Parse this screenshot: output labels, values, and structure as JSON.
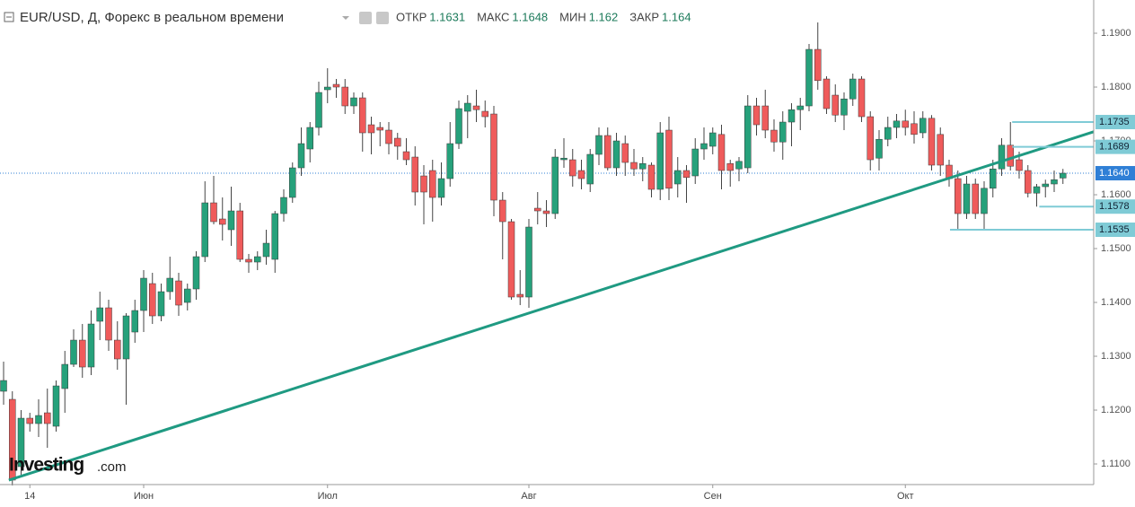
{
  "chart_data": {
    "type": "candlestick",
    "title": "EUR/USD, Д, Форекс в реальном времени",
    "header_labels": [
      "ОТКР",
      "МАКС",
      "МИН",
      "ЗАКР"
    ],
    "watermark": [
      "Investing",
      ".com"
    ],
    "up_color": "#26a17b",
    "down_color": "#ef5b5b",
    "wick_color": "#444444",
    "categories": [
      null,
      null,
      null,
      "14",
      null,
      null,
      null,
      null,
      null,
      null,
      null,
      null,
      null,
      null,
      null,
      null,
      "Июн",
      null,
      null,
      null,
      null,
      null,
      null,
      null,
      null,
      null,
      null,
      null,
      null,
      null,
      null,
      null,
      null,
      null,
      null,
      null,
      null,
      "Июл",
      null,
      null,
      null,
      null,
      null,
      null,
      null,
      null,
      null,
      null,
      null,
      null,
      null,
      null,
      null,
      null,
      null,
      null,
      null,
      null,
      null,
      null,
      "Авг",
      null,
      null,
      null,
      null,
      null,
      null,
      null,
      null,
      null,
      null,
      null,
      null,
      null,
      null,
      null,
      null,
      null,
      null,
      null,
      null,
      "Сен",
      null,
      null,
      null,
      null,
      null,
      null,
      null,
      null,
      null,
      null,
      null,
      null,
      null,
      null,
      null,
      null,
      null,
      null,
      null,
      null,
      null,
      "Окт",
      null,
      null,
      null,
      null,
      null,
      null,
      null,
      null,
      null,
      null,
      null,
      null,
      null,
      null,
      null,
      null,
      null,
      null
    ],
    "open": [
      1.1235,
      1.122,
      1.1095,
      1.1185,
      1.1175,
      1.1195,
      1.117,
      1.124,
      1.1285,
      1.133,
      1.128,
      1.1365,
      1.139,
      1.133,
      1.1295,
      1.1345,
      1.1385,
      1.1435,
      1.1375,
      1.142,
      1.144,
      1.14,
      1.1425,
      1.1485,
      1.1585,
      1.1555,
      1.1535,
      1.157,
      1.148,
      1.1475,
      1.1485,
      1.148,
      1.1565,
      1.1595,
      1.165,
      1.1685,
      1.1725,
      1.1795,
      1.1805,
      1.18,
      1.1765,
      1.178,
      1.173,
      1.1725,
      1.172,
      1.1705,
      1.168,
      1.167,
      1.1635,
      1.1645,
      1.1595,
      1.163,
      1.1695,
      1.1755,
      1.1765,
      1.1755,
      1.175,
      1.159,
      1.155,
      1.1415,
      1.141,
      1.1575,
      1.157,
      1.1565,
      1.1665,
      1.1665,
      1.1645,
      1.162,
      1.1675,
      1.171,
      1.165,
      1.1695,
      1.166,
      1.1648,
      1.1655,
      1.161,
      1.172,
      1.162,
      1.1645,
      1.1635,
      1.1685,
      1.169,
      1.1712,
      1.1658,
      1.1648,
      1.165,
      1.1765,
      1.1765,
      1.172,
      1.1698,
      1.1735,
      1.1758,
      1.1765,
      1.187,
      1.1815,
      1.1785,
      1.1748,
      1.1778,
      1.1815,
      1.1745,
      1.1668,
      1.1703,
      1.1725,
      1.1737,
      1.1732,
      1.1715,
      1.1742,
      1.1712,
      1.1655,
      1.163,
      1.1565,
      1.162,
      1.1565,
      1.1612,
      1.1648,
      1.1692,
      1.1665,
      1.1645,
      1.1603,
      1.1615,
      1.162,
      1.1631
    ],
    "high": [
      1.129,
      1.1235,
      1.12,
      1.1195,
      1.122,
      1.124,
      1.1255,
      1.131,
      1.135,
      1.136,
      1.1385,
      1.142,
      1.1405,
      1.1365,
      1.138,
      1.1405,
      1.146,
      1.1455,
      1.1435,
      1.1485,
      1.1455,
      1.1435,
      1.1495,
      1.1625,
      1.1635,
      1.1595,
      1.1615,
      1.1585,
      1.149,
      1.1495,
      1.1535,
      1.157,
      1.161,
      1.166,
      1.1725,
      1.1735,
      1.181,
      1.1835,
      1.1815,
      1.1815,
      1.179,
      1.179,
      1.1745,
      1.1735,
      1.1735,
      1.1715,
      1.1705,
      1.169,
      1.1655,
      1.1665,
      1.166,
      1.1735,
      1.1775,
      1.1785,
      1.1795,
      1.1775,
      1.1765,
      1.1605,
      1.1555,
      1.146,
      1.1555,
      1.1605,
      1.159,
      1.1685,
      1.1705,
      1.1685,
      1.1665,
      1.1685,
      1.1725,
      1.1725,
      1.1715,
      1.171,
      1.1685,
      1.167,
      1.166,
      1.1735,
      1.1745,
      1.167,
      1.1655,
      1.1705,
      1.1725,
      1.1725,
      1.173,
      1.1665,
      1.167,
      1.1785,
      1.178,
      1.1795,
      1.174,
      1.1755,
      1.177,
      1.178,
      1.188,
      1.192,
      1.182,
      1.1805,
      1.179,
      1.1825,
      1.182,
      1.1755,
      1.172,
      1.1745,
      1.175,
      1.1758,
      1.1755,
      1.1755,
      1.1748,
      1.1725,
      1.1665,
      1.1645,
      1.1635,
      1.163,
      1.1625,
      1.1665,
      1.1705,
      1.1735,
      1.168,
      1.1655,
      1.162,
      1.1628,
      1.1645,
      1.1648
    ],
    "low": [
      1.121,
      1.106,
      1.108,
      1.116,
      1.115,
      1.113,
      1.116,
      1.1195,
      1.128,
      1.126,
      1.1265,
      1.133,
      1.131,
      1.1275,
      1.121,
      1.1325,
      1.1345,
      1.136,
      1.1365,
      1.1405,
      1.1375,
      1.1385,
      1.1405,
      1.1475,
      1.1545,
      1.1515,
      1.1505,
      1.1475,
      1.1455,
      1.146,
      1.147,
      1.1455,
      1.155,
      1.1585,
      1.1635,
      1.166,
      1.171,
      1.177,
      1.178,
      1.175,
      1.175,
      1.168,
      1.1675,
      1.169,
      1.1675,
      1.1665,
      1.1655,
      1.158,
      1.1545,
      1.155,
      1.158,
      1.1615,
      1.1685,
      1.1705,
      1.1735,
      1.1725,
      1.156,
      1.148,
      1.1405,
      1.1395,
      1.139,
      1.1545,
      1.154,
      1.1555,
      1.165,
      1.1615,
      1.161,
      1.1605,
      1.1655,
      1.1645,
      1.1635,
      1.1635,
      1.1635,
      1.1625,
      1.1595,
      1.159,
      1.159,
      1.1595,
      1.1585,
      1.162,
      1.1665,
      1.1675,
      1.161,
      1.1615,
      1.1625,
      1.164,
      1.171,
      1.1705,
      1.168,
      1.1665,
      1.169,
      1.172,
      1.1755,
      1.1795,
      1.175,
      1.1735,
      1.172,
      1.1765,
      1.1735,
      1.1645,
      1.1645,
      1.169,
      1.1705,
      1.171,
      1.1695,
      1.1705,
      1.1645,
      1.1635,
      1.1615,
      1.1535,
      1.1555,
      1.1555,
      1.1535,
      1.1595,
      1.1635,
      1.1645,
      1.163,
      1.1595,
      1.1578,
      1.1595,
      1.1605,
      1.162
    ],
    "close": [
      1.1255,
      1.107,
      1.1185,
      1.1175,
      1.119,
      1.1175,
      1.1245,
      1.1285,
      1.133,
      1.128,
      1.136,
      1.139,
      1.133,
      1.1295,
      1.1375,
      1.1385,
      1.1445,
      1.1375,
      1.142,
      1.1445,
      1.1395,
      1.1425,
      1.1485,
      1.1585,
      1.155,
      1.1545,
      1.157,
      1.148,
      1.1475,
      1.1485,
      1.151,
      1.1565,
      1.1595,
      1.165,
      1.1695,
      1.1725,
      1.179,
      1.18,
      1.18,
      1.1765,
      1.178,
      1.1715,
      1.1715,
      1.172,
      1.1695,
      1.169,
      1.1665,
      1.1605,
      1.1605,
      1.1595,
      1.163,
      1.1695,
      1.176,
      1.177,
      1.1758,
      1.1745,
      1.159,
      1.155,
      1.141,
      1.141,
      1.154,
      1.157,
      1.1565,
      1.167,
      1.1668,
      1.1635,
      1.163,
      1.1675,
      1.171,
      1.165,
      1.17,
      1.166,
      1.1648,
      1.1658,
      1.161,
      1.1715,
      1.1612,
      1.1645,
      1.1632,
      1.1685,
      1.1695,
      1.1715,
      1.1645,
      1.1645,
      1.1662,
      1.1765,
      1.173,
      1.172,
      1.1698,
      1.1735,
      1.1758,
      1.1765,
      1.187,
      1.1812,
      1.176,
      1.1748,
      1.1778,
      1.1815,
      1.1745,
      1.1665,
      1.1703,
      1.1725,
      1.1737,
      1.1725,
      1.1712,
      1.1742,
      1.1655,
      1.1655,
      1.163,
      1.1565,
      1.162,
      1.1565,
      1.1612,
      1.1648,
      1.1692,
      1.1653,
      1.1645,
      1.1603,
      1.1615,
      1.162,
      1.1628,
      1.164
    ],
    "ylim": [
      1.10617,
      1.19617
    ],
    "yticks": [
      {
        "value": 1.11,
        "label": "1.1100"
      },
      {
        "value": 1.12,
        "label": "1.1200"
      },
      {
        "value": 1.13,
        "label": "1.1300"
      },
      {
        "value": 1.14,
        "label": "1.1400"
      },
      {
        "value": 1.15,
        "label": "1.1500"
      },
      {
        "value": 1.16,
        "label": "1.1600"
      },
      {
        "value": 1.17,
        "label": "1.1700"
      },
      {
        "value": 1.18,
        "label": "1.1800"
      },
      {
        "value": 1.19,
        "label": "1.1900"
      }
    ],
    "grid": false,
    "trendline": {
      "x": [
        0.6,
        124.7
      ],
      "y": [
        1.107,
        1.1717
      ],
      "color": "#1f9a82"
    },
    "levels": [
      {
        "value": 1.1735,
        "start_index": 115.2
      },
      {
        "value": 1.1689,
        "start_index": 115.2
      },
      {
        "value": 1.1578,
        "start_index": 118.3
      },
      {
        "value": 1.1535,
        "start_index": 108.1
      }
    ],
    "level_color": "#7fcbd6",
    "last_price": {
      "value": 1.164,
      "label": "1.1640"
    },
    "last_price_color": "#2f7fd6"
  }
}
